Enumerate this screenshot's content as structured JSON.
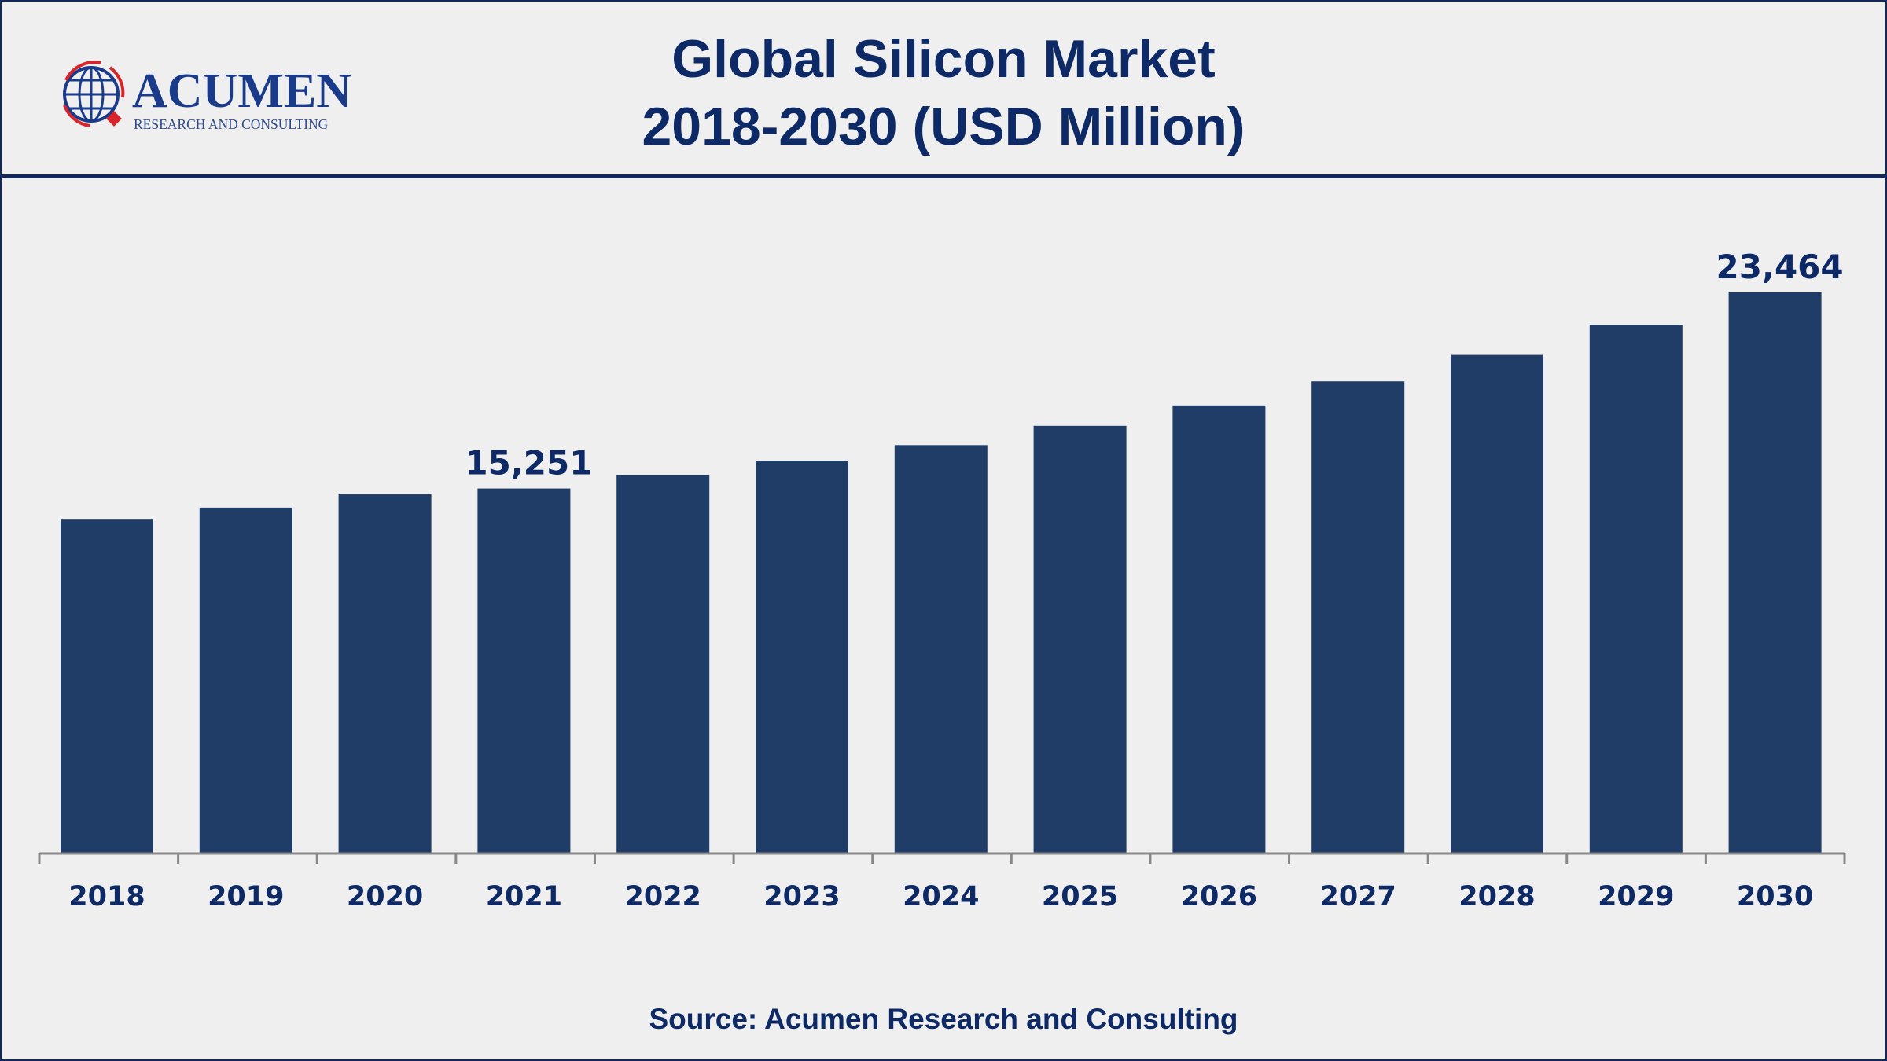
{
  "header": {
    "title_line1": "Global Silicon Market",
    "title_line2": "2018-2030 (USD Million)",
    "logo_text": "ACUMEN",
    "logo_subtext": "RESEARCH AND CONSULTING"
  },
  "source": "Source: Acumen Research and Consulting",
  "colors": {
    "bar": "#1f3d66",
    "text": "#0d2a66",
    "background": "#efefef",
    "logo_red": "#d7262b"
  },
  "chart_data": {
    "type": "bar",
    "title": "Global Silicon Market 2018-2030 (USD Million)",
    "categories": [
      "2018",
      "2019",
      "2020",
      "2021",
      "2022",
      "2023",
      "2024",
      "2025",
      "2026",
      "2027",
      "2028",
      "2029",
      "2030"
    ],
    "values": [
      13948,
      14451,
      15005,
      15251,
      15810,
      16415,
      17069,
      17875,
      18730,
      19738,
      20845,
      22104,
      23464
    ],
    "data_labels": [
      {
        "category": "2021",
        "text": "15,251"
      },
      {
        "category": "2030",
        "text": "23,464"
      }
    ],
    "grid": false,
    "yaxis_visible": false,
    "xlabel": "",
    "ylabel": ""
  }
}
